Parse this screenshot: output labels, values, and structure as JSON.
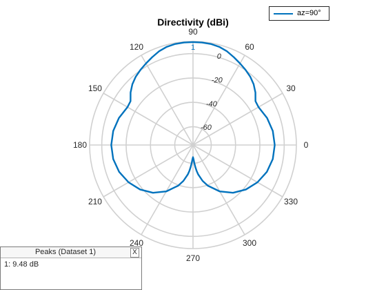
{
  "chart_data": {
    "type": "polar-line",
    "title": "Directivity (dBi)",
    "angle_ticks": [
      0,
      30,
      60,
      90,
      120,
      150,
      180,
      210,
      240,
      270,
      300,
      330
    ],
    "angle_tick_labels": [
      "0",
      "30",
      "60",
      "90",
      "120",
      "150",
      "180",
      "210",
      "240",
      "270",
      "300",
      "330"
    ],
    "radial_ticks": [
      1,
      0,
      -20,
      -40,
      -60
    ],
    "radial_tick_labels": [
      "1",
      "0",
      "-20",
      "-40",
      "-60"
    ],
    "rlim": [
      -75,
      10
    ],
    "grid": true,
    "legend_position": "top-right",
    "series": [
      {
        "name": "az=90°",
        "color": "#0072BD",
        "theta_deg": [
          0,
          10,
          20,
          30,
          35,
          40,
          45,
          50,
          55,
          60,
          65,
          70,
          75,
          80,
          85,
          90,
          95,
          100,
          105,
          110,
          115,
          120,
          125,
          130,
          135,
          140,
          145,
          150,
          160,
          170,
          180,
          190,
          200,
          210,
          220,
          230,
          240,
          250,
          255,
          260,
          262,
          264,
          266,
          268,
          270,
          272,
          274,
          276,
          278,
          280,
          285,
          290,
          300,
          310,
          320,
          330,
          340,
          350,
          360
        ],
        "r_db": [
          -7.8,
          -8.4,
          -10.2,
          -12.8,
          -12.3,
          -8.0,
          -4.5,
          -1.8,
          0.3,
          2.3,
          4.5,
          6.8,
          8.4,
          9.2,
          9.45,
          9.48,
          9.45,
          9.2,
          8.4,
          6.8,
          4.5,
          2.3,
          0.3,
          -1.8,
          -4.5,
          -8.0,
          -12.3,
          -12.8,
          -10.2,
          -8.4,
          -7.8,
          -8.4,
          -10.4,
          -13.8,
          -18.2,
          -23.8,
          -31.0,
          -39.5,
          -44.5,
          -50.5,
          -53.5,
          -57.0,
          -60.5,
          -63.5,
          -65.0,
          -63.5,
          -60.5,
          -57.0,
          -53.5,
          -50.5,
          -44.5,
          -39.5,
          -31.0,
          -23.8,
          -18.2,
          -13.8,
          -10.4,
          -8.4,
          -7.8
        ]
      }
    ]
  },
  "legend": {
    "entries": [
      "az=90°"
    ]
  },
  "peaks_panel": {
    "title": "Peaks (Dataset 1)",
    "close_label": "X",
    "rows": [
      "1: 9.48 dB"
    ]
  }
}
